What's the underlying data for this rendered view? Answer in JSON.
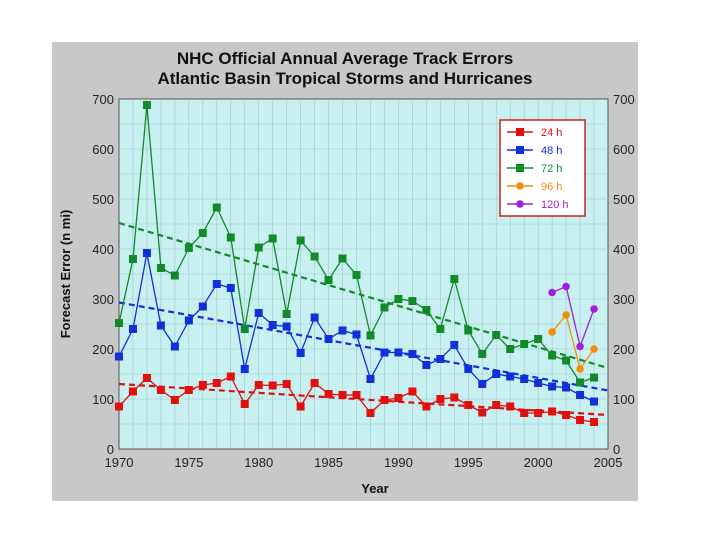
{
  "chart_data": {
    "type": "line",
    "title": "NHC Official Annual Average Track Errors",
    "subtitle": "Atlantic Basin Tropical Storms and Hurricanes",
    "xlabel": "Year",
    "ylabel": "Forecast Error (n mi)",
    "xlim": [
      1970,
      2005
    ],
    "ylim": [
      0,
      700
    ],
    "xticks": [
      1970,
      1975,
      1980,
      1985,
      1990,
      1995,
      2000,
      2005
    ],
    "yticks": [
      0,
      100,
      200,
      300,
      400,
      500,
      600,
      700
    ],
    "grid": true,
    "legend_position": "top-right",
    "series": [
      {
        "name": "24 h",
        "color": "#e01010",
        "marker": "square",
        "x": [
          1970,
          1971,
          1972,
          1973,
          1974,
          1975,
          1976,
          1977,
          1978,
          1979,
          1980,
          1981,
          1982,
          1983,
          1984,
          1985,
          1986,
          1987,
          1988,
          1989,
          1990,
          1991,
          1992,
          1993,
          1994,
          1995,
          1996,
          1997,
          1998,
          1999,
          2000,
          2001,
          2002,
          2003,
          2004
        ],
        "values": [
          85,
          115,
          142,
          118,
          98,
          118,
          128,
          132,
          145,
          90,
          128,
          127,
          130,
          85,
          132,
          110,
          108,
          108,
          72,
          98,
          102,
          115,
          85,
          100,
          103,
          88,
          73,
          88,
          85,
          72,
          72,
          75,
          68,
          58,
          54
        ],
        "trend": [
          130,
          68
        ]
      },
      {
        "name": "48 h",
        "color": "#1030d8",
        "marker": "square",
        "x": [
          1970,
          1971,
          1972,
          1973,
          1974,
          1975,
          1976,
          1977,
          1978,
          1979,
          1980,
          1981,
          1982,
          1983,
          1984,
          1985,
          1986,
          1987,
          1988,
          1989,
          1990,
          1991,
          1992,
          1993,
          1994,
          1995,
          1996,
          1997,
          1998,
          1999,
          2000,
          2001,
          2002,
          2003,
          2004
        ],
        "values": [
          185,
          240,
          392,
          247,
          205,
          257,
          285,
          330,
          322,
          160,
          272,
          248,
          245,
          192,
          263,
          220,
          237,
          229,
          140,
          193,
          193,
          190,
          168,
          180,
          208,
          160,
          130,
          150,
          145,
          140,
          132,
          125,
          123,
          108,
          95
        ],
        "trend": [
          293,
          117
        ]
      },
      {
        "name": "72 h",
        "color": "#138a2a",
        "marker": "square",
        "x": [
          1970,
          1971,
          1972,
          1973,
          1974,
          1975,
          1976,
          1977,
          1978,
          1979,
          1980,
          1981,
          1982,
          1983,
          1984,
          1985,
          1986,
          1987,
          1988,
          1989,
          1990,
          1991,
          1992,
          1993,
          1994,
          1995,
          1996,
          1997,
          1998,
          1999,
          2000,
          2001,
          2002,
          2003,
          2004
        ],
        "values": [
          252,
          380,
          688,
          362,
          347,
          402,
          432,
          483,
          423,
          240,
          403,
          421,
          270,
          417,
          385,
          338,
          381,
          348,
          227,
          283,
          300,
          296,
          278,
          240,
          340,
          237,
          190,
          228,
          200,
          210,
          220,
          187,
          177,
          133,
          143
        ],
        "trend": [
          452,
          162
        ]
      },
      {
        "name": "96 h",
        "color": "#f0900c",
        "marker": "circle",
        "x": [
          2001,
          2002,
          2003,
          2004
        ],
        "values": [
          234,
          268,
          160,
          200
        ],
        "trend": null
      },
      {
        "name": "120 h",
        "color": "#a020d8",
        "marker": "circle",
        "x": [
          2001,
          2002,
          2003,
          2004
        ],
        "values": [
          313,
          325,
          205,
          280
        ],
        "trend": null
      }
    ]
  }
}
